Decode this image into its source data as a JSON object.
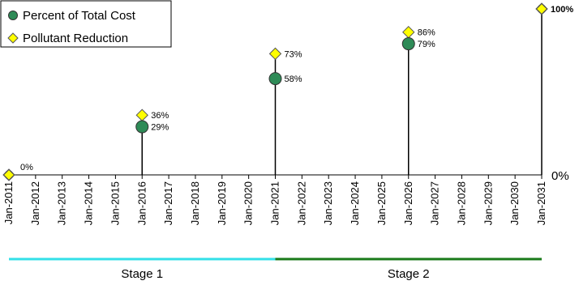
{
  "chart_data": {
    "type": "scatter",
    "x_labels": [
      "Jan-2011",
      "Jan-2012",
      "Jan-2013",
      "Jan-2014",
      "Jan-2015",
      "Jan-2016",
      "Jan-2017",
      "Jan-2018",
      "Jan-2019",
      "Jan-2020",
      "Jan-2021",
      "Jan-2022",
      "Jan-2023",
      "Jan-2024",
      "Jan-2025",
      "Jan-2026",
      "Jan-2027",
      "Jan-2028",
      "Jan-2029",
      "Jan-2030",
      "Jan-2031"
    ],
    "y_axis_label": "0%",
    "ylim": [
      0,
      100
    ],
    "legend": {
      "position": "top-left",
      "items": [
        {
          "name": "Percent of Total Cost",
          "marker": "circle",
          "color": "#2e8b57"
        },
        {
          "name": "Pollutant Reduction",
          "marker": "diamond",
          "color": "#ffff00"
        }
      ]
    },
    "series": [
      {
        "name": "Percent of Total Cost",
        "points": [
          {
            "x": "Jan-2011",
            "y": 0,
            "label": ""
          },
          {
            "x": "Jan-2016",
            "y": 29,
            "label": "29%"
          },
          {
            "x": "Jan-2021",
            "y": 58,
            "label": "58%"
          },
          {
            "x": "Jan-2026",
            "y": 79,
            "label": "79%"
          },
          {
            "x": "Jan-2031",
            "y": 100,
            "label": ""
          }
        ]
      },
      {
        "name": "Pollutant Reduction",
        "points": [
          {
            "x": "Jan-2011",
            "y": 0,
            "label": "0%"
          },
          {
            "x": "Jan-2016",
            "y": 36,
            "label": "36%"
          },
          {
            "x": "Jan-2021",
            "y": 73,
            "label": "73%"
          },
          {
            "x": "Jan-2026",
            "y": 86,
            "label": "86%"
          },
          {
            "x": "Jan-2031",
            "y": 100,
            "label": "100%"
          }
        ]
      }
    ],
    "stages": [
      {
        "label": "Stage 1",
        "start": "Jan-2011",
        "end": "Jan-2021",
        "color": "#33e0e8"
      },
      {
        "label": "Stage 2",
        "start": "Jan-2021",
        "end": "Jan-2031",
        "color": "#1a7a1a"
      }
    ],
    "grid": false
  }
}
